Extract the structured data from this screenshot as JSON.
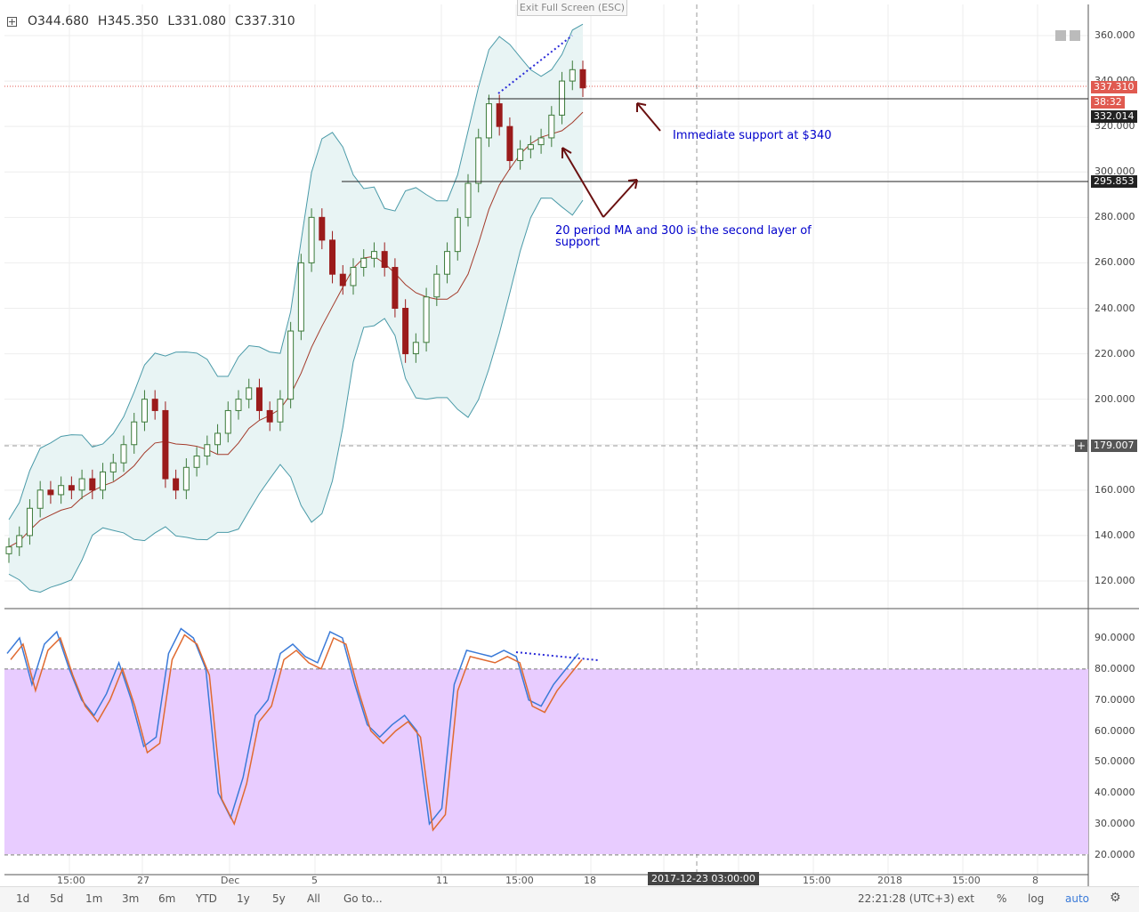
{
  "header": {
    "open": "O344.680",
    "high": "H345.350",
    "low": "L331.080",
    "close": "C337.310",
    "exit_fullscreen": "Exit Full Screen (ESC)"
  },
  "price_axis": {
    "ticks": [
      "360.000",
      "340.000",
      "320.000",
      "300.000",
      "280.000",
      "260.000",
      "240.000",
      "220.000",
      "200.000",
      "180.000",
      "160.000",
      "140.000",
      "120.000"
    ],
    "tags": {
      "last_price": "337.310",
      "countdown": "38:32",
      "support_line": "332.014",
      "support_line2": "295.853",
      "crosshair": "179.007"
    },
    "colors": {
      "last_price": "#e05a50",
      "countdown": "#e05a50",
      "support": "#222222",
      "crosshair": "#555555"
    }
  },
  "oscillator_axis": {
    "ticks": [
      "90.0000",
      "80.0000",
      "70.0000",
      "60.0000",
      "50.0000",
      "40.0000",
      "30.0000",
      "20.0000"
    ]
  },
  "time_axis": {
    "labels": [
      "15:00",
      "27",
      "Dec",
      "5",
      "11",
      "15:00",
      "18",
      "15:00",
      "2018",
      "15:00",
      "8"
    ],
    "crosshair_label": "2017-12-23 03:00:00"
  },
  "annotations": {
    "immediate_support": "Immediate support at $340",
    "second_layer_line1": "20 period MA and 300 is the second layer of",
    "second_layer_line2": "support"
  },
  "toolbar": {
    "ranges": [
      "1d",
      "5d",
      "1m",
      "3m",
      "6m",
      "YTD",
      "1y",
      "5y",
      "All"
    ],
    "goto": "Go to...",
    "clock": "22:21:28 (UTC+3)",
    "options": [
      "ext",
      "%",
      "log",
      "auto"
    ]
  },
  "colors": {
    "bull_candle": "#3c7a3a",
    "bear_candle": "#9b1b1b",
    "bollinger": "#4a9aa8",
    "bollinger_fill": "#e8f4f4",
    "ma": "#a33a2a",
    "stoch_k": "#3a7ad8",
    "stoch_d": "#e06a30",
    "stoch_zone": "#e8ccff",
    "arrow": "#6a1010",
    "annotation_text": "#0000cc"
  },
  "chart_data": {
    "type": "candlestick",
    "title": "",
    "xlabel": "",
    "ylabel": "",
    "ylim": [
      110,
      365
    ],
    "last_price": 337.31,
    "support_levels": [
      332.014,
      295.853
    ],
    "resistance_divergence": true,
    "series": [
      {
        "name": "price_close_approx",
        "values": [
          135,
          140,
          152,
          160,
          158,
          162,
          160,
          165,
          160,
          168,
          172,
          180,
          190,
          200,
          195,
          165,
          160,
          170,
          175,
          180,
          185,
          195,
          200,
          205,
          195,
          190,
          200,
          230,
          260,
          280,
          270,
          255,
          250,
          258,
          262,
          265,
          258,
          240,
          220,
          225,
          245,
          255,
          265,
          280,
          295,
          315,
          330,
          320,
          305,
          310,
          312,
          315,
          325,
          340,
          345,
          337
        ]
      }
    ],
    "oscillator": {
      "name": "stochastic",
      "ylim": [
        18,
        95
      ],
      "overbought": 80,
      "oversold": 20,
      "k_values": [
        85,
        90,
        75,
        88,
        92,
        80,
        70,
        65,
        72,
        82,
        70,
        55,
        58,
        85,
        93,
        90,
        80,
        40,
        32,
        45,
        65,
        70,
        85,
        88,
        84,
        82,
        92,
        90,
        75,
        62,
        58,
        62,
        65,
        60,
        30,
        35,
        75,
        86,
        85,
        84,
        86,
        84,
        70,
        68,
        75,
        80,
        85
      ]
    }
  }
}
